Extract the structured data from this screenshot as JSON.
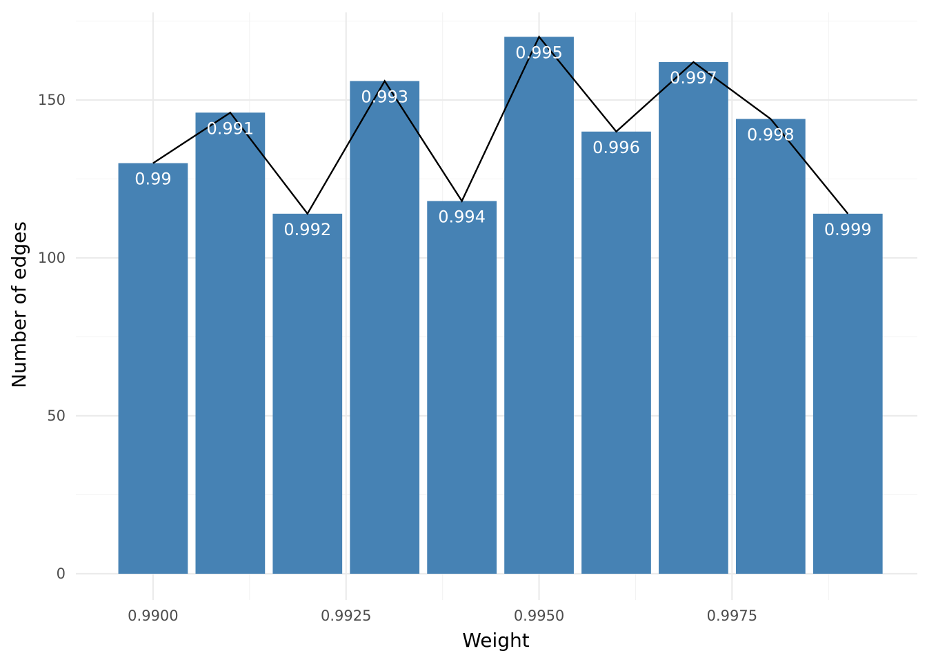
{
  "chart_data": {
    "type": "bar",
    "title": "",
    "xlabel": "Weight",
    "ylabel": "Number of edges",
    "x": [
      0.99,
      0.991,
      0.992,
      0.993,
      0.994,
      0.995,
      0.996,
      0.997,
      0.998,
      0.999
    ],
    "values": [
      130,
      146,
      114,
      156,
      118,
      170,
      140,
      162,
      144,
      114
    ],
    "bar_labels": [
      "0.99",
      "0.991",
      "0.992",
      "0.993",
      "0.994",
      "0.995",
      "0.996",
      "0.997",
      "0.998",
      "0.999"
    ],
    "overlay": "line",
    "xlim": [
      0.989,
      0.9999
    ],
    "ylim": [
      0,
      175
    ],
    "x_ticks": [
      0.99,
      0.9925,
      0.995,
      0.9975
    ],
    "x_tick_labels": [
      "0.9900",
      "0.9925",
      "0.9950",
      "0.9975"
    ],
    "y_ticks": [
      0,
      50,
      100,
      150
    ],
    "y_tick_labels": [
      "0",
      "50",
      "100",
      "150"
    ],
    "grid": true,
    "legend": "none",
    "colors": {
      "bar": "#4682b4",
      "line": "#000000",
      "bar_label": "#ffffff",
      "grid": "#ebebeb",
      "tick_text": "#4d4d4d"
    }
  }
}
